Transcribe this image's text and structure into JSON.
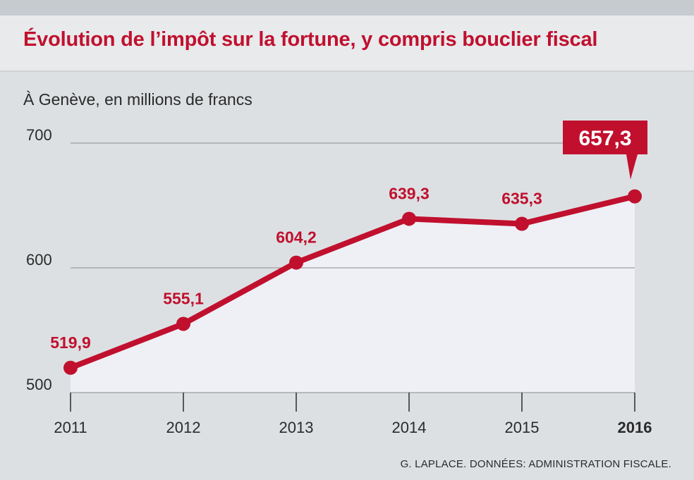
{
  "header": {
    "title": "Évolution de l’impôt sur la fortune, y compris bouclier fiscal"
  },
  "subtitle": "À Genève, en millions de francs",
  "source": "G. LAPLACE. DONNÉES: ADMINISTRATION FISCALE.",
  "colors": {
    "accent": "#c0102e",
    "background": "#dde0e3",
    "area_fill": "#eef0f5",
    "gridline": "#8a8a8a"
  },
  "chart_data": {
    "type": "line",
    "title": "Évolution de l’impôt sur la fortune, y compris bouclier fiscal",
    "subtitle": "À Genève, en millions de francs",
    "x": [
      "2011",
      "2012",
      "2013",
      "2014",
      "2015",
      "2016"
    ],
    "series": [
      {
        "values": [
          519.9,
          555.1,
          604.2,
          639.3,
          635.3,
          657.3
        ],
        "labels": [
          "519,9",
          "555,1",
          "604,2",
          "639,3",
          "635,3",
          "657,3"
        ]
      }
    ],
    "highlight": {
      "category": "2016",
      "label": "657,3"
    },
    "y_ticks": [
      "500",
      "600",
      "700"
    ],
    "ylim": [
      500,
      700
    ],
    "grid": true,
    "area_fill": true
  }
}
